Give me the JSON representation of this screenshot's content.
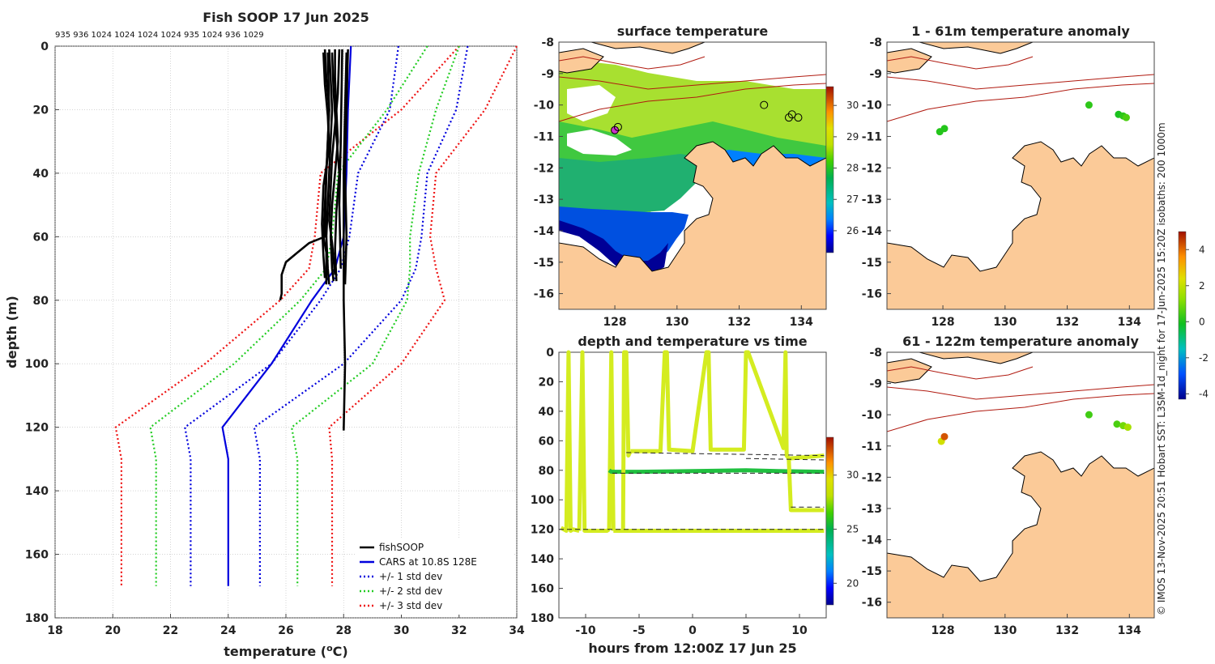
{
  "figure": {
    "side_text": "© IMOS 13-Nov-2025 20:51 Hobart SST: L3SM-1d_night for 17-Jun-2025 15:20Z isobaths: 200  1000m"
  },
  "colors": {
    "fish": "#000000",
    "cars": "#0000dd",
    "std1": "#0000dd",
    "std2": "#22cc22",
    "std3": "#ee1111",
    "land": "#fbca98",
    "isobath": "#b01a10"
  },
  "chart_data": [
    {
      "id": "profile",
      "type": "line",
      "title": "Fish SOOP 17 Jun 2025",
      "xlabel_main": "temperature (",
      "xlabel_sup": "o",
      "xlabel_end": "C)",
      "ylabel": "depth (m)",
      "xlim": [
        18,
        34
      ],
      "ylim": [
        180,
        0
      ],
      "xticks": [
        18,
        20,
        22,
        24,
        26,
        28,
        30,
        32,
        34
      ],
      "yticks": [
        0,
        20,
        40,
        60,
        80,
        100,
        120,
        140,
        160,
        180
      ],
      "profile_counts": "935 936 1024 1024 1024 1024 935 1024 936 1029",
      "depth": [
        0,
        20,
        40,
        60,
        70,
        80,
        100,
        120,
        130,
        170
      ],
      "series": [
        {
          "name": "+/- 3 std dev",
          "style": "std3",
          "x": [
            32.0,
            30.0,
            27.2,
            27.0,
            26.8,
            25.8,
            23.2,
            20.1,
            20.3,
            20.3
          ]
        },
        {
          "name": "+/- 3 std dev",
          "style": "std3",
          "x": [
            34.0,
            32.9,
            31.2,
            31.0,
            31.2,
            31.5,
            30.0,
            27.5,
            27.6,
            27.6
          ]
        },
        {
          "name": "+/- 2 std dev",
          "style": "std2",
          "x": [
            30.9,
            29.5,
            27.8,
            27.6,
            27.4,
            26.5,
            24.2,
            21.3,
            21.5,
            21.5
          ]
        },
        {
          "name": "+/- 2 std dev",
          "style": "std2",
          "x": [
            32.0,
            31.2,
            30.6,
            30.3,
            30.3,
            30.2,
            29.0,
            26.2,
            26.4,
            26.4
          ]
        },
        {
          "name": "+/- 1 std dev",
          "style": "std1",
          "x": [
            29.9,
            29.6,
            28.5,
            28.2,
            27.9,
            27.2,
            25.5,
            22.5,
            22.7,
            22.7
          ]
        },
        {
          "name": "+/- 1 std dev",
          "style": "std1",
          "x": [
            32.3,
            31.9,
            30.9,
            30.7,
            30.5,
            30.0,
            28.0,
            24.9,
            25.1,
            25.1
          ]
        },
        {
          "name": "CARS at 10.8S 128E",
          "style": "cars",
          "x": [
            28.25,
            28.15,
            28.1,
            28.0,
            27.7,
            26.9,
            25.5,
            23.8,
            24.0,
            24.0
          ]
        }
      ],
      "fish_profiles": [
        {
          "depth": [
            1,
            10,
            20,
            30,
            40,
            50,
            60,
            65,
            75
          ],
          "x": [
            27.35,
            27.4,
            27.5,
            27.45,
            27.4,
            27.35,
            27.3,
            27.4,
            27.4
          ]
        },
        {
          "depth": [
            1,
            10,
            20,
            30,
            40,
            50,
            60,
            70,
            75
          ],
          "x": [
            27.5,
            27.55,
            27.6,
            27.55,
            27.5,
            27.45,
            27.4,
            27.45,
            27.5
          ]
        },
        {
          "depth": [
            1,
            10,
            20,
            30,
            40,
            50,
            60,
            70,
            74
          ],
          "x": [
            27.7,
            27.7,
            27.75,
            27.8,
            27.7,
            27.6,
            27.55,
            27.6,
            27.65
          ]
        },
        {
          "depth": [
            1,
            15,
            25,
            35,
            45,
            55,
            62,
            72
          ],
          "x": [
            27.85,
            27.8,
            27.7,
            27.6,
            27.55,
            27.5,
            27.6,
            27.7
          ]
        },
        {
          "depth": [
            2,
            12,
            22,
            32,
            44,
            56,
            66,
            73
          ],
          "x": [
            27.3,
            27.35,
            27.45,
            27.5,
            27.3,
            27.25,
            27.3,
            27.35
          ]
        },
        {
          "depth": [
            2,
            14,
            28,
            40,
            52,
            64,
            74
          ],
          "x": [
            27.6,
            27.65,
            27.75,
            27.85,
            27.75,
            27.7,
            27.75
          ]
        },
        {
          "depth": [
            2,
            20,
            40,
            60,
            62,
            65,
            68,
            72,
            78,
            80
          ],
          "x": [
            27.45,
            27.5,
            27.4,
            27.35,
            26.8,
            26.4,
            26.0,
            25.85,
            25.85,
            25.8
          ]
        },
        {
          "depth": [
            2,
            20,
            40,
            60,
            80,
            100,
            121
          ],
          "x": [
            28.1,
            28.05,
            28.0,
            28.0,
            28.0,
            28.05,
            28.0
          ]
        },
        {
          "depth": [
            1,
            20,
            40,
            60,
            75
          ],
          "x": [
            28.15,
            28.1,
            28.05,
            28.1,
            28.05
          ]
        },
        {
          "depth": [
            1,
            30,
            50,
            70
          ],
          "x": [
            27.95,
            27.9,
            27.85,
            27.9
          ]
        }
      ],
      "legend": [
        {
          "label": "fishSOOP",
          "style": "fish"
        },
        {
          "label": "CARS at 10.8S 128E",
          "style": "cars"
        },
        {
          "label": "+/- 1 std dev",
          "style": "std1"
        },
        {
          "label": "+/- 2 std dev",
          "style": "std2"
        },
        {
          "label": "+/- 3 std dev",
          "style": "std3"
        }
      ]
    },
    {
      "id": "sst_map",
      "type": "heatmap",
      "title": "surface temperature",
      "xlim": [
        126.2,
        134.8
      ],
      "ylim": [
        -16.5,
        -8
      ],
      "xticks": [
        128,
        130,
        132,
        134
      ],
      "yticks": [
        -8,
        -9,
        -10,
        -11,
        -12,
        -13,
        -14,
        -15,
        -16
      ],
      "colorbar": {
        "range": [
          25.3,
          30.6
        ],
        "ticks": [
          26,
          27,
          28,
          29,
          30
        ]
      },
      "markers": [
        {
          "lon": 128.0,
          "lat": -10.8,
          "color": "#cc33cc"
        },
        {
          "lon": 128.1,
          "lat": -10.7,
          "color": "none"
        },
        {
          "lon": 132.8,
          "lat": -10.0,
          "color": "none"
        },
        {
          "lon": 133.6,
          "lat": -10.4,
          "color": "none"
        },
        {
          "lon": 133.7,
          "lat": -10.3,
          "color": "none"
        },
        {
          "lon": 133.9,
          "lat": -10.4,
          "color": "none"
        }
      ]
    },
    {
      "id": "anom_shallow",
      "type": "scatter",
      "title": "1 - 61m temperature anomaly",
      "xlim": [
        126.2,
        134.8
      ],
      "ylim": [
        -16.5,
        -8
      ],
      "xticks": [
        128,
        130,
        132,
        134
      ],
      "yticks": [
        -8,
        -9,
        -10,
        -11,
        -12,
        -13,
        -14,
        -15,
        -16
      ],
      "points": [
        {
          "lon": 127.9,
          "lat": -10.85,
          "anomaly": 0.2
        },
        {
          "lon": 128.05,
          "lat": -10.75,
          "anomaly": 0.2
        },
        {
          "lon": 132.7,
          "lat": -10.0,
          "anomaly": 0.3
        },
        {
          "lon": 133.65,
          "lat": -10.3,
          "anomaly": 0.1
        },
        {
          "lon": 133.8,
          "lat": -10.35,
          "anomaly": 0.3
        },
        {
          "lon": 133.9,
          "lat": -10.4,
          "anomaly": 0.6
        }
      ]
    },
    {
      "id": "anom_deep",
      "type": "scatter",
      "title": "61 - 122m temperature anomaly",
      "xlim": [
        126.2,
        134.8
      ],
      "ylim": [
        -16.5,
        -8
      ],
      "xticks": [
        128,
        130,
        132,
        134
      ],
      "yticks": [
        -8,
        -9,
        -10,
        -11,
        -12,
        -13,
        -14,
        -15,
        -16
      ],
      "colorbar": {
        "range": [
          -4.3,
          5.0
        ],
        "ticks": [
          -4,
          -2,
          0,
          2,
          4
        ]
      },
      "points": [
        {
          "lon": 127.95,
          "lat": -10.85,
          "anomaly": 2.2
        },
        {
          "lon": 128.05,
          "lat": -10.7,
          "anomaly": 4.2
        },
        {
          "lon": 132.7,
          "lat": -10.0,
          "anomaly": 0.5
        },
        {
          "lon": 133.6,
          "lat": -10.3,
          "anomaly": 0.6
        },
        {
          "lon": 133.8,
          "lat": -10.35,
          "anomaly": 1.0
        },
        {
          "lon": 133.95,
          "lat": -10.4,
          "anomaly": 1.6
        }
      ]
    },
    {
      "id": "depth_time",
      "type": "line",
      "title": "depth and temperature vs time",
      "xlabel": "hours from 12:00Z 17 Jun 25",
      "xlim": [
        -12.5,
        12.5
      ],
      "ylim": [
        180,
        0
      ],
      "xticks": [
        -10,
        -5,
        0,
        5,
        10
      ],
      "yticks": [
        0,
        20,
        40,
        60,
        80,
        100,
        120,
        140,
        160,
        180
      ],
      "colorbar": {
        "range": [
          18,
          33.5
        ],
        "ticks": [
          20,
          25,
          30
        ]
      },
      "tracks": [
        {
          "t": [
            -12.3,
            -11.8,
            -11.6,
            -11.4,
            -11.2,
            -10.6
          ],
          "d": [
            119,
            121,
            0,
            121,
            120,
            121
          ],
          "temp": 28
        },
        {
          "t": [
            -10.6,
            -10.3,
            -10.1,
            -9.5,
            -8.0,
            -7.8
          ],
          "d": [
            121,
            0,
            121,
            121,
            121,
            120
          ],
          "temp": 28
        },
        {
          "t": [
            -7.8,
            -7.6,
            -7.4
          ],
          "d": [
            120,
            0,
            121
          ],
          "temp": 28
        },
        {
          "t": [
            -7.8,
            -7.6,
            -7.4,
            -5,
            0,
            5,
            8,
            12.3
          ],
          "d": [
            80,
            81,
            81,
            81,
            80.5,
            80,
            80.5,
            81
          ],
          "temp": 25
        },
        {
          "t": [
            -6.5,
            -6.4,
            -6.2,
            -6.0,
            -5.8
          ],
          "d": [
            121,
            0,
            0,
            70,
            67
          ],
          "temp": 28
        },
        {
          "t": [
            -5.8,
            -3,
            -2.6,
            -2.4,
            -2.2,
            0,
            1.3,
            1.5,
            1.7,
            4.8,
            5.0,
            5.2,
            8.5,
            8.7,
            8.8,
            9.0,
            12.3
          ],
          "d": [
            67,
            67,
            0,
            0,
            66,
            67,
            0,
            0,
            66,
            66,
            0,
            0,
            65,
            0,
            70,
            72,
            70
          ],
          "temp": 28
        },
        {
          "t": [
            -7.4,
            -5,
            0,
            5,
            10,
            12.3
          ],
          "d": [
            121,
            121,
            121,
            121,
            121,
            121
          ],
          "temp": 28
        },
        {
          "t": [
            9.0,
            9.2,
            12.3
          ],
          "d": [
            72,
            107,
            107
          ],
          "temp": 29
        }
      ],
      "dashed": [
        {
          "t": [
            -6.2,
            12.3
          ],
          "d": [
            68,
            70
          ]
        },
        {
          "t": [
            -7.5,
            12.3
          ],
          "d": [
            82,
            82
          ]
        },
        {
          "t": [
            -12.5,
            12.3
          ],
          "d": [
            120,
            120
          ]
        },
        {
          "t": [
            5,
            12.3
          ],
          "d": [
            72,
            73
          ]
        },
        {
          "t": [
            9.2,
            12.3
          ],
          "d": [
            105,
            105
          ]
        }
      ]
    }
  ]
}
